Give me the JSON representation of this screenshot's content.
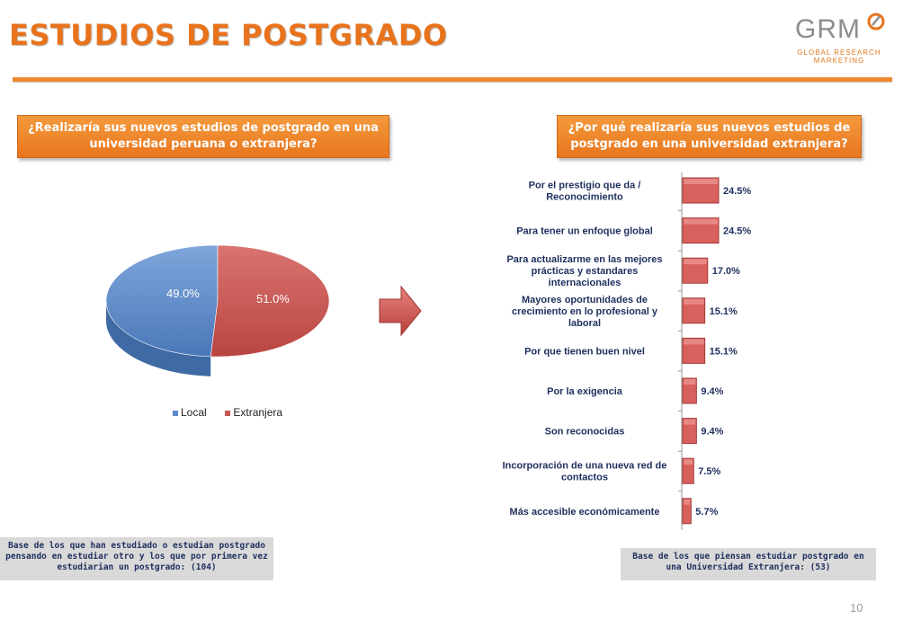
{
  "title": "ESTUDIOS DE POSTGRADO",
  "logo": {
    "main": "GRM",
    "sub": "GLOBAL RESEARCH MARKETING"
  },
  "questions": {
    "left": "¿Realizaría sus nuevos estudios de postgrado en una universidad peruana o extranjera?",
    "right": "¿Por qué realizaría sus nuevos estudios de postgrado en una universidad extranjera?"
  },
  "notes": {
    "left": "Base de los que han estudiado o estudian postgrado pensando en estudiar otro y los que por primera vez estudiarian un postgrado: (104)",
    "right": "Base de los que piensan estudiar postgrado en una Universidad Extranjera: (53)"
  },
  "page_number": "10",
  "colors": {
    "accent": "#e8731c",
    "local": "#5b8ac9",
    "extranjera": "#c95451",
    "bar": "#d9615d",
    "text": "#1f2f5e"
  },
  "icons": {
    "arrow": "right-arrow-icon"
  },
  "chart_data": [
    {
      "type": "pie",
      "labels": [
        "Local",
        "Extranjera"
      ],
      "values": [
        49.0,
        51.0
      ],
      "value_labels": [
        "49.0%",
        "51.0%"
      ],
      "colors": [
        "#5b8ac9",
        "#c95451"
      ],
      "legend": "bottom"
    },
    {
      "type": "bar",
      "orientation": "horizontal",
      "categories": [
        "Por el prestigio que da / Reconocimiento",
        "Para tener un enfoque global",
        "Para actualizarme en las mejores prácticas y estandares internacionales",
        "Mayores oportunidades de crecimiento en lo profesional y laboral",
        "Por que tienen buen nivel",
        "Por la exigencia",
        "Son reconocidas",
        "Incorporación de una nueva red de contactos",
        "Más accesible económicamente"
      ],
      "category_lines": [
        [
          "Por el prestigio que da /",
          "Reconocimiento"
        ],
        [
          "Para tener un enfoque global"
        ],
        [
          "Para actualizarme en las mejores",
          "prácticas y estandares",
          "internacionales"
        ],
        [
          "Mayores oportunidades de",
          "crecimiento en lo profesional y",
          "laboral"
        ],
        [
          "Por que tienen buen nivel"
        ],
        [
          "Por la exigencia"
        ],
        [
          "Son reconocidas"
        ],
        [
          "Incorporación de una nueva red de",
          "contactos"
        ],
        [
          "Más accesible económicamente"
        ]
      ],
      "values": [
        24.5,
        24.5,
        17.0,
        15.1,
        15.1,
        9.4,
        9.4,
        7.5,
        5.7
      ],
      "value_labels": [
        "24.5%",
        "24.5%",
        "17.0%",
        "15.1%",
        "15.1%",
        "9.4%",
        "9.4%",
        "7.5%",
        "5.7%"
      ],
      "xlim": [
        0,
        100
      ],
      "grid": false
    }
  ]
}
